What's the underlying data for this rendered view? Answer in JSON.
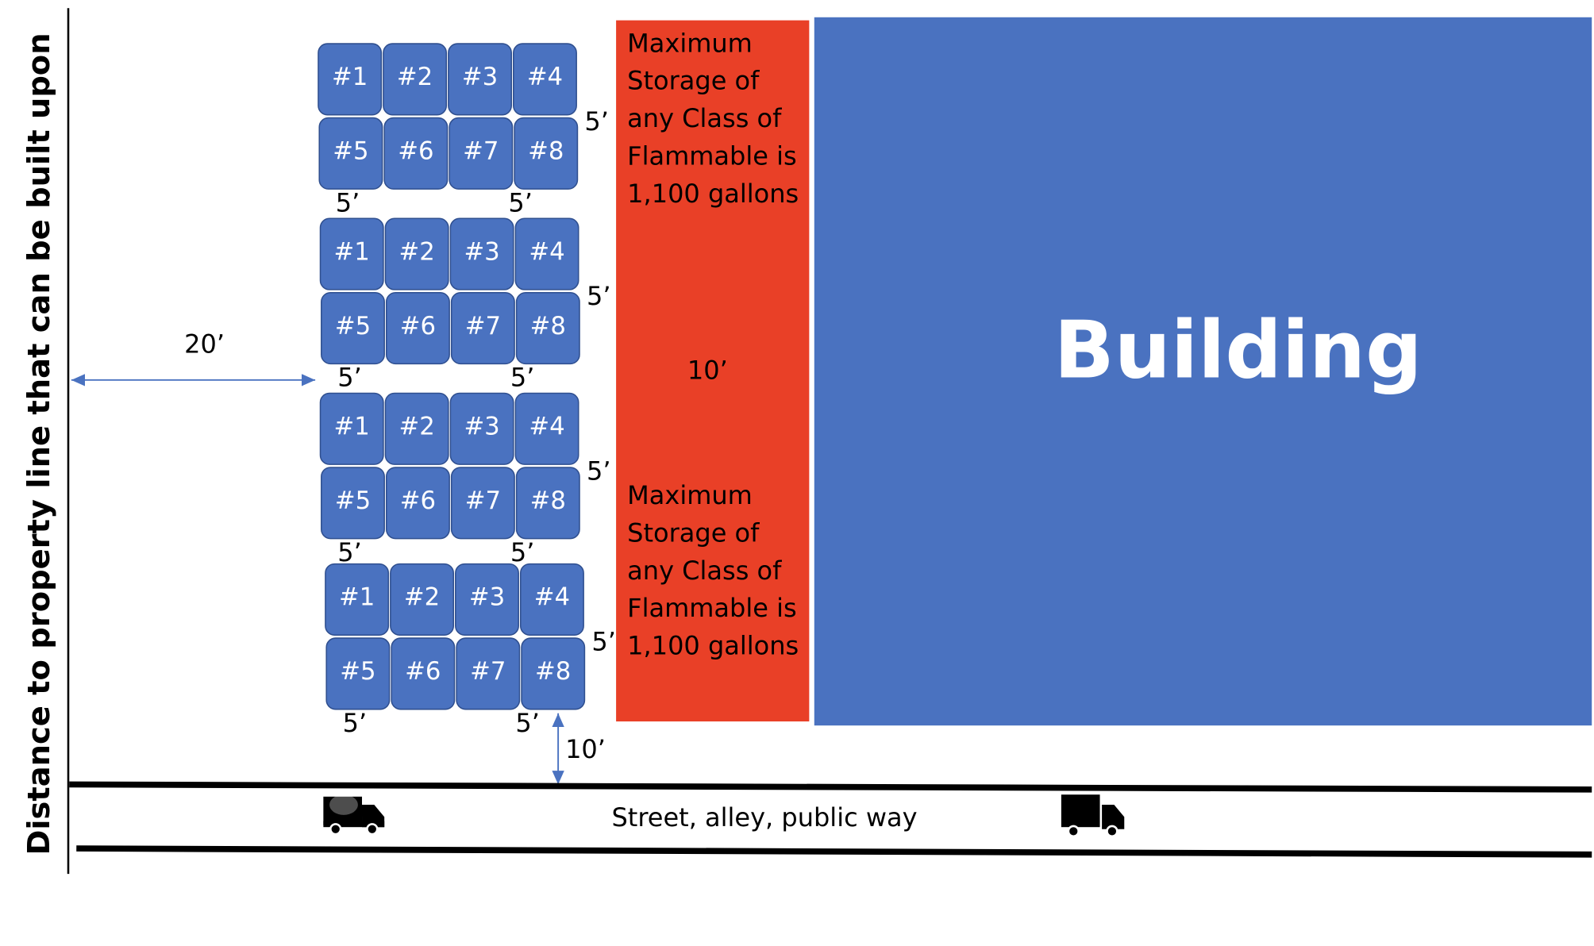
{
  "vertical_label": "Distance to property line that can be built upon",
  "setback": "20’",
  "groups": [
    {
      "drums": [
        "#1",
        "#2",
        "#3",
        "#4",
        "#5",
        "#6",
        "#7",
        "#8"
      ],
      "right_gap": "5’",
      "bottom_left_gap": "5’",
      "bottom_right_gap": "5’"
    },
    {
      "drums": [
        "#1",
        "#2",
        "#3",
        "#4",
        "#5",
        "#6",
        "#7",
        "#8"
      ],
      "right_gap": "5’",
      "bottom_left_gap": "5’",
      "bottom_right_gap": "5’"
    },
    {
      "drums": [
        "#1",
        "#2",
        "#3",
        "#4",
        "#5",
        "#6",
        "#7",
        "#8"
      ],
      "right_gap": "5’",
      "bottom_left_gap": "5’",
      "bottom_right_gap": "5’"
    },
    {
      "drums": [
        "#1",
        "#2",
        "#3",
        "#4",
        "#5",
        "#6",
        "#7",
        "#8"
      ],
      "right_gap": "5’",
      "bottom_left_gap": "5’",
      "bottom_right_gap": "5’"
    }
  ],
  "separation": {
    "gap": "10’",
    "notes": [
      [
        "Maximum",
        "Storage of",
        "any Class of",
        "Flammable is",
        "1,100 gallons"
      ],
      [
        "Maximum",
        "Storage of",
        "any Class of",
        "Flammable is",
        "1,100 gallons"
      ]
    ]
  },
  "building": "Building",
  "street_gap": "10’",
  "street": "Street, alley, public way"
}
